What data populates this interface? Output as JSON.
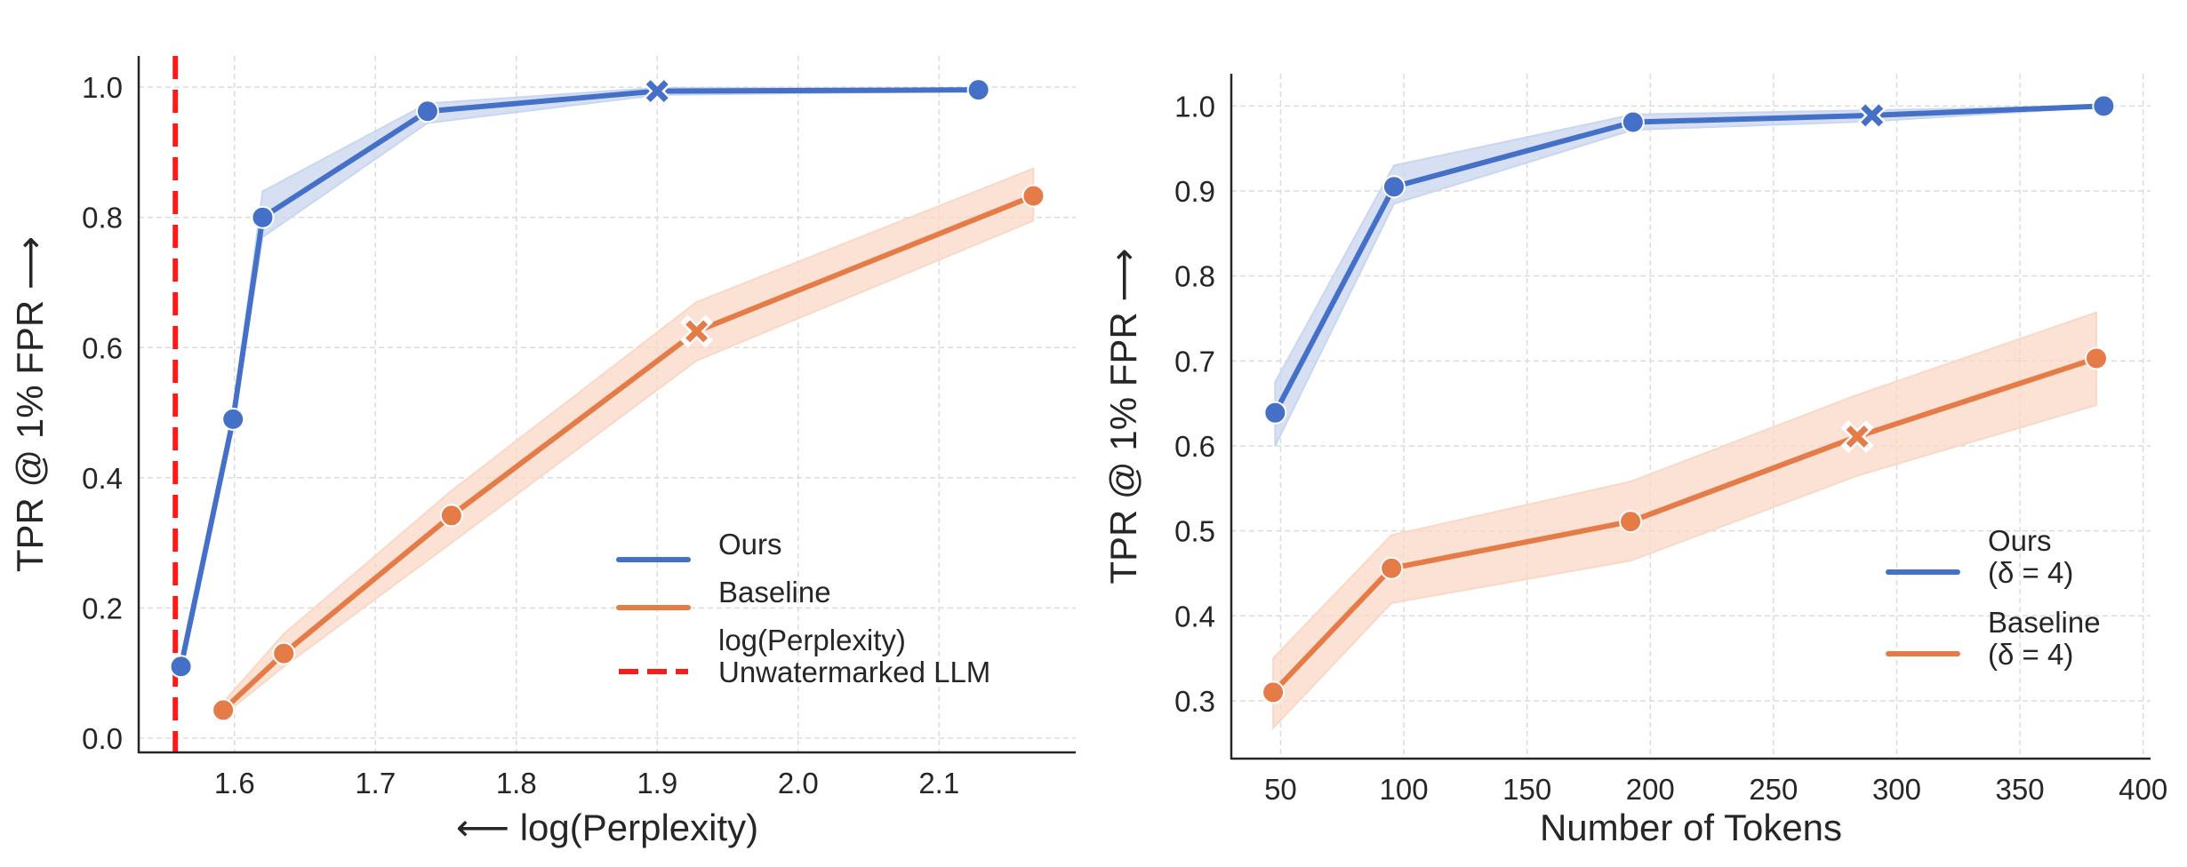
{
  "colors": {
    "ours": "#4470c8",
    "ours_band": "#c9d6ef",
    "baseline": "#e57c48",
    "baseline_band": "#f9d8c7",
    "reference": "#ff1a1a",
    "axis": "#262626",
    "grid": "#dcdcdc"
  },
  "chart_data": [
    {
      "type": "line",
      "title": "",
      "xlabel": "⟵ log(Perplexity)",
      "ylabel": "TPR @ 1% FPR ⟶",
      "xlim": [
        1.532,
        2.197
      ],
      "ylim": [
        -0.022,
        1.048
      ],
      "xticks": [
        1.6,
        1.7,
        1.8,
        1.9,
        2.0,
        2.1
      ],
      "xtick_labels": [
        "1.6",
        "1.7",
        "1.8",
        "1.9",
        "2.0",
        "2.1"
      ],
      "yticks": [
        0.0,
        0.2,
        0.4,
        0.6,
        0.8,
        1.0
      ],
      "ytick_labels": [
        "0.0",
        "0.2",
        "0.4",
        "0.6",
        "0.8",
        "1.0"
      ],
      "grid": true,
      "legend_position": "lower-right",
      "series": [
        {
          "name": "Ours",
          "color_key": "ours",
          "x": [
            1.562,
            1.599,
            1.62,
            1.737,
            1.9,
            2.128
          ],
          "y": [
            0.11,
            0.49,
            0.8,
            0.963,
            0.994,
            0.996
          ],
          "lower": [
            0.1,
            0.48,
            0.77,
            0.945,
            0.988,
            0.994
          ],
          "upper": [
            0.12,
            0.5,
            0.84,
            0.975,
            0.999,
            0.998
          ],
          "markers": [
            "o",
            "o",
            "o",
            "o",
            "x",
            "o"
          ]
        },
        {
          "name": "Baseline",
          "color_key": "baseline",
          "x": [
            1.592,
            1.635,
            1.754,
            1.928,
            2.167
          ],
          "y": [
            0.043,
            0.13,
            0.342,
            0.625,
            0.833
          ],
          "lower": [
            0.035,
            0.11,
            0.3,
            0.58,
            0.795
          ],
          "upper": [
            0.055,
            0.16,
            0.38,
            0.67,
            0.875
          ],
          "markers": [
            "o",
            "o",
            "o",
            "x",
            "o"
          ]
        }
      ],
      "reference_lines": [
        {
          "name": "log(Perplexity) Unwatermarked LLM",
          "orientation": "vertical",
          "x": 1.558,
          "style": "dashed",
          "color_key": "reference"
        }
      ],
      "legend": [
        {
          "label_lines": [
            "Ours"
          ],
          "color_key": "ours",
          "style": "solid"
        },
        {
          "label_lines": [
            "Baseline"
          ],
          "color_key": "baseline",
          "style": "solid"
        },
        {
          "label_lines": [
            "log(Perplexity)",
            "Unwatermarked LLM"
          ],
          "color_key": "reference",
          "style": "dashed"
        }
      ]
    },
    {
      "type": "line",
      "title": "",
      "xlabel": "Number of Tokens",
      "ylabel": "TPR @ 1% FPR ⟶",
      "xlim": [
        30,
        403
      ],
      "ylim": [
        0.232,
        1.038
      ],
      "xticks": [
        50,
        100,
        150,
        200,
        250,
        300,
        350,
        400
      ],
      "xtick_labels": [
        "50",
        "100",
        "150",
        "200",
        "250",
        "300",
        "350",
        "400"
      ],
      "yticks": [
        0.3,
        0.4,
        0.5,
        0.6,
        0.7,
        0.8,
        0.9,
        1.0
      ],
      "ytick_labels": [
        "0.3",
        "0.4",
        "0.5",
        "0.6",
        "0.7",
        "0.8",
        "0.9",
        "1.0"
      ],
      "grid": true,
      "legend_position": "lower-right",
      "series": [
        {
          "name": "Ours (δ = 4)",
          "color_key": "ours",
          "x": [
            47.8,
            96,
            193,
            290,
            384
          ],
          "y": [
            0.639,
            0.905,
            0.981,
            0.989,
            1.0
          ],
          "lower": [
            0.6,
            0.885,
            0.972,
            0.982,
            0.999
          ],
          "upper": [
            0.675,
            0.93,
            0.99,
            0.995,
            1.0
          ],
          "markers": [
            "o",
            "o",
            "o",
            "x",
            "o"
          ]
        },
        {
          "name": "Baseline (δ = 4)",
          "color_key": "baseline",
          "x": [
            47,
            95,
            192,
            284,
            381
          ],
          "y": [
            0.31,
            0.456,
            0.511,
            0.611,
            0.703
          ],
          "lower": [
            0.268,
            0.415,
            0.465,
            0.565,
            0.648
          ],
          "upper": [
            0.35,
            0.495,
            0.558,
            0.66,
            0.757
          ],
          "markers": [
            "o",
            "o",
            "o",
            "x",
            "o"
          ]
        }
      ],
      "reference_lines": [],
      "legend": [
        {
          "label_lines": [
            "Ours",
            "(δ = 4)"
          ],
          "color_key": "ours",
          "style": "solid"
        },
        {
          "label_lines": [
            "Baseline",
            "(δ = 4)"
          ],
          "color_key": "baseline",
          "style": "solid"
        }
      ]
    }
  ]
}
